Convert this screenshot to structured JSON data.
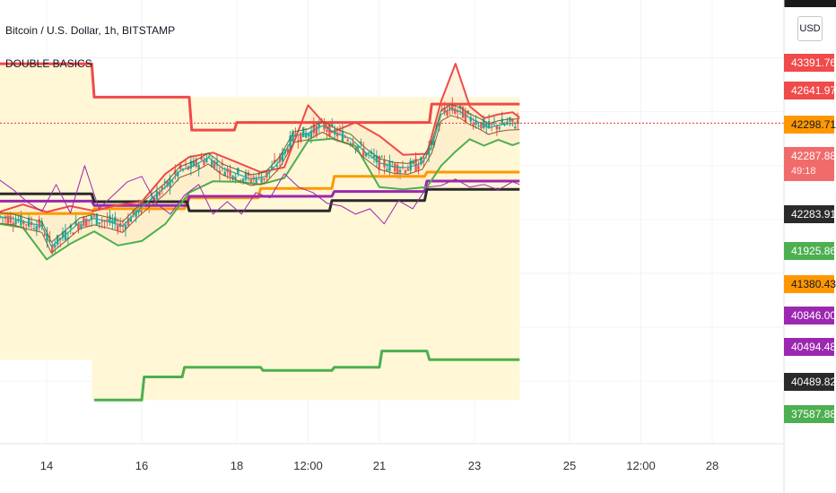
{
  "header": {
    "title": "Bitcoin / U.S. Dollar, 1h, BITSTAMP",
    "indicator": "DOUBLE BASICS",
    "currency": "USD"
  },
  "colors": {
    "red": "#f04a4a",
    "green": "#4caf50",
    "orange": "#ff9800",
    "purple": "#9c27b0",
    "black": "#2a2a2a",
    "candle_up": "#26a69a",
    "candle_down": "#ef5350",
    "cloud_fill": "#fff7d6",
    "axis_text": "#333333"
  },
  "price_tags": [
    {
      "label": "43391.76",
      "bg": "#f04a4a",
      "fg": "#ffffff"
    },
    {
      "label": "42641.97",
      "bg": "#f04a4a",
      "fg": "#ffffff"
    },
    {
      "label": "42298.71",
      "bg": "#ff9800",
      "fg": "#131722"
    },
    {
      "label": "42287.88",
      "bg": "#f26b6b",
      "fg": "#ffffff",
      "sub": "49:18"
    },
    {
      "label": "42283.91",
      "bg": "#2a2a2a",
      "fg": "#ffffff"
    },
    {
      "label": "41925.86",
      "bg": "#4caf50",
      "fg": "#ffffff"
    },
    {
      "label": "41380.43",
      "bg": "#ff9800",
      "fg": "#131722"
    },
    {
      "label": "40846.00",
      "bg": "#9c27b0",
      "fg": "#ffffff"
    },
    {
      "label": "40494.48",
      "bg": "#9c27b0",
      "fg": "#ffffff"
    },
    {
      "label": "40489.82",
      "bg": "#2a2a2a",
      "fg": "#ffffff"
    },
    {
      "label": "37587.88",
      "bg": "#4caf50",
      "fg": "#ffffff"
    }
  ],
  "x_ticks": [
    "14",
    "16",
    "18",
    "12:00",
    "21",
    "23",
    "25",
    "12:00",
    "28"
  ],
  "chart_data": {
    "type": "line",
    "title": "Bitcoin / U.S. Dollar, 1h, BITSTAMP",
    "xlabel": "",
    "ylabel": "",
    "x_unit": "days since 13",
    "y_unit": "USD",
    "ylim": [
      37200,
      43900
    ],
    "last_price": 42287.88,
    "grid": true,
    "series": [
      {
        "name": "upper step (red)",
        "color": "#f04a4a",
        "x": [
          13.0,
          14.95,
          15.0,
          17.0,
          17.05,
          17.95,
          18.0,
          22.05,
          22.1,
          23.95
        ],
        "y": [
          43390,
          43390,
          42770,
          42770,
          42160,
          42160,
          42300,
          42300,
          42642,
          42642
        ]
      },
      {
        "name": "lower step (green)",
        "color": "#4caf50",
        "x": [
          15.0,
          16.0,
          16.05,
          16.85,
          16.9,
          18.5,
          18.55,
          20.0,
          20.05,
          21.0,
          21.05,
          22.0,
          22.05,
          23.95
        ],
        "y": [
          37150,
          37150,
          37580,
          37580,
          37760,
          37760,
          37700,
          37700,
          37760,
          37760,
          38060,
          38060,
          37900,
          37900
        ]
      },
      {
        "name": "mid step (orange)",
        "color": "#ff9800",
        "x": [
          13.0,
          14.95,
          15.0,
          16.9,
          16.95,
          18.45,
          18.5,
          20.0,
          20.05,
          21.95,
          22.0,
          23.95
        ],
        "y": [
          40610,
          40610,
          40700,
          40700,
          40900,
          40900,
          41075,
          41075,
          41300,
          41300,
          41380,
          41380
        ]
      },
      {
        "name": "purple step",
        "color": "#9c27b0",
        "x": [
          13.0,
          14.95,
          15.0,
          16.95,
          17.0,
          20.0,
          20.05,
          21.95,
          22.0,
          23.95
        ],
        "y": [
          40840,
          40840,
          40760,
          40760,
          40930,
          40930,
          41020,
          41020,
          41213,
          41213
        ]
      },
      {
        "name": "black step",
        "color": "#2a2a2a",
        "x": [
          13.0,
          14.95,
          15.0,
          16.95,
          17.0,
          19.95,
          20.0,
          21.95,
          22.0,
          23.95
        ],
        "y": [
          40975,
          40975,
          40830,
          40830,
          40660,
          40660,
          40850,
          40850,
          41060,
          41060
        ]
      },
      {
        "name": "upper band",
        "color": "#f04a4a",
        "x": [
          13.0,
          13.5,
          14.0,
          14.5,
          15.0,
          15.5,
          16.0,
          16.5,
          17.0,
          17.5,
          18.0,
          18.5,
          19.0,
          19.5,
          20.0,
          20.5,
          21.0,
          21.5,
          22.0,
          22.3,
          22.6,
          22.9,
          23.2,
          23.5,
          23.8,
          23.95
        ],
        "y": [
          40640,
          40780,
          40640,
          40750,
          40660,
          40770,
          40830,
          41350,
          41660,
          41740,
          41560,
          41380,
          41470,
          42620,
          42120,
          42300,
          42050,
          41700,
          41720,
          42700,
          43390,
          42600,
          42380,
          42450,
          42490,
          42390
        ]
      },
      {
        "name": "lower band",
        "color": "#4caf50",
        "x": [
          13.0,
          13.5,
          14.0,
          14.5,
          15.0,
          15.5,
          16.0,
          16.5,
          17.0,
          17.5,
          18.0,
          18.5,
          19.0,
          19.5,
          20.0,
          20.5,
          21.0,
          21.5,
          22.0,
          22.3,
          22.6,
          22.9,
          23.2,
          23.5,
          23.8,
          23.95
        ],
        "y": [
          40420,
          40350,
          39760,
          40050,
          40280,
          40020,
          40100,
          40420,
          41000,
          41210,
          41200,
          41150,
          41270,
          41960,
          42000,
          41860,
          41100,
          41060,
          41100,
          41500,
          41760,
          41990,
          41870,
          41980,
          41880,
          41925
        ]
      },
      {
        "name": "price",
        "color": "#26a69a",
        "x": [
          13.0,
          13.3,
          13.6,
          13.9,
          14.1,
          14.4,
          14.7,
          15.0,
          15.3,
          15.6,
          15.9,
          16.2,
          16.5,
          16.8,
          17.1,
          17.4,
          17.7,
          18.0,
          18.3,
          18.6,
          18.9,
          19.2,
          19.5,
          19.8,
          20.1,
          20.4,
          20.7,
          21.0,
          21.3,
          21.6,
          21.9,
          22.1,
          22.3,
          22.5,
          22.7,
          22.9,
          23.1,
          23.3,
          23.5,
          23.7,
          23.95
        ],
        "y": [
          40550,
          40520,
          40440,
          40380,
          40000,
          40220,
          40450,
          40520,
          40460,
          40380,
          40650,
          40880,
          41100,
          41400,
          41500,
          41650,
          41450,
          41350,
          41250,
          41300,
          41580,
          42050,
          42100,
          42240,
          42100,
          42000,
          41750,
          41550,
          41480,
          41460,
          41550,
          41850,
          42450,
          42550,
          42500,
          42380,
          42300,
          42200,
          42250,
          42280,
          42288
        ]
      },
      {
        "name": "oscillator (purple)",
        "color": "#9c27b0",
        "x": [
          13.0,
          13.3,
          13.6,
          13.9,
          14.2,
          14.5,
          14.8,
          15.1,
          15.4,
          15.7,
          16.0,
          16.3,
          16.6,
          16.9,
          17.2,
          17.5,
          17.8,
          18.1,
          18.4,
          18.7,
          19.0,
          19.3,
          19.6,
          19.9,
          20.2,
          20.5,
          20.8,
          21.1,
          21.4,
          21.7,
          22.0,
          22.3,
          22.6,
          22.9,
          23.2,
          23.5,
          23.8,
          23.95
        ],
        "y": [
          41240,
          41050,
          40820,
          40650,
          41150,
          40620,
          41500,
          40700,
          40950,
          41200,
          41300,
          40800,
          40600,
          40950,
          41150,
          40600,
          40830,
          40600,
          41000,
          40900,
          41350,
          41100,
          41000,
          40800,
          40750,
          40600,
          40700,
          40420,
          40850,
          40700,
          41100,
          41130,
          41250,
          41100,
          41150,
          41050,
          41200,
          41150
        ]
      }
    ]
  }
}
